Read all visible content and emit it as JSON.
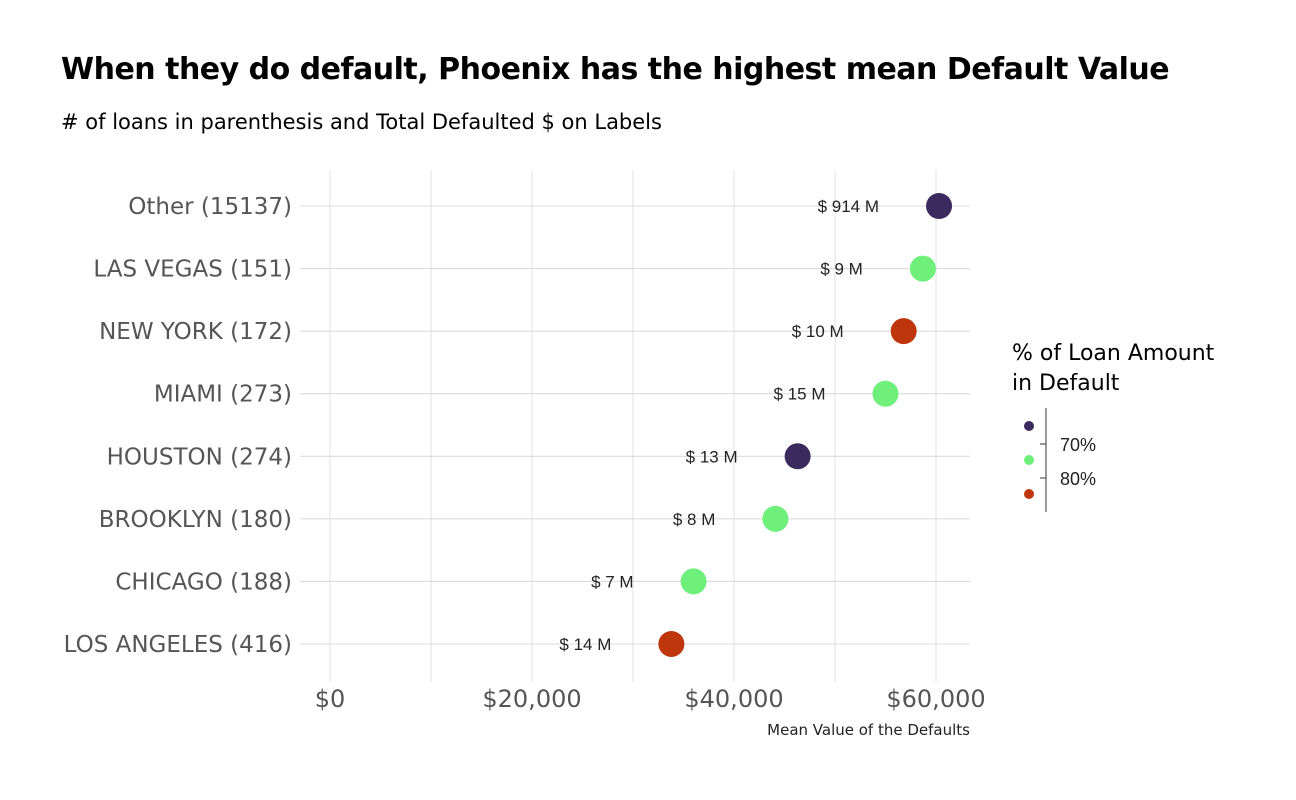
{
  "chart_data": {
    "type": "scatter",
    "title": "When they do default, Phoenix has the highest mean Default Value",
    "subtitle": "# of loans in parenthesis and Total Defaulted $ on Labels",
    "xlabel": "Mean Value of the Defaults",
    "ylabel": "",
    "xlim": [
      0,
      63000
    ],
    "x_ticks": [
      0,
      20000,
      40000,
      60000
    ],
    "x_tick_labels": [
      "$0",
      "$20,000",
      "$40,000",
      "$60,000"
    ],
    "grid": true,
    "legend": {
      "title_line1": "% of Loan Amount",
      "title_line2": "in Default",
      "position": "right",
      "labels": [
        "70%",
        "80%"
      ],
      "colors": [
        "#3b2a5e",
        "#6ef07a",
        "#bf360c"
      ]
    },
    "categories": [
      "Other (15137)",
      "LAS VEGAS (151)",
      "NEW YORK (172)",
      "MIAMI (273)",
      "HOUSTON (274)",
      "BROOKLYN (180)",
      "CHICAGO (188)",
      "LOS ANGELES (416)"
    ],
    "values": [
      60300,
      58700,
      56800,
      55000,
      46300,
      44100,
      36000,
      33800
    ],
    "labels": [
      "$ 914 M",
      "$ 9 M",
      "$ 10 M",
      "$ 15 M",
      "$ 13 M",
      "$ 8 M",
      "$ 7 M",
      "$ 14 M"
    ],
    "point_colors": [
      "#3b2a5e",
      "#6ef07a",
      "#bf360c",
      "#6ef07a",
      "#3b2a5e",
      "#6ef07a",
      "#6ef07a",
      "#bf360c"
    ]
  }
}
